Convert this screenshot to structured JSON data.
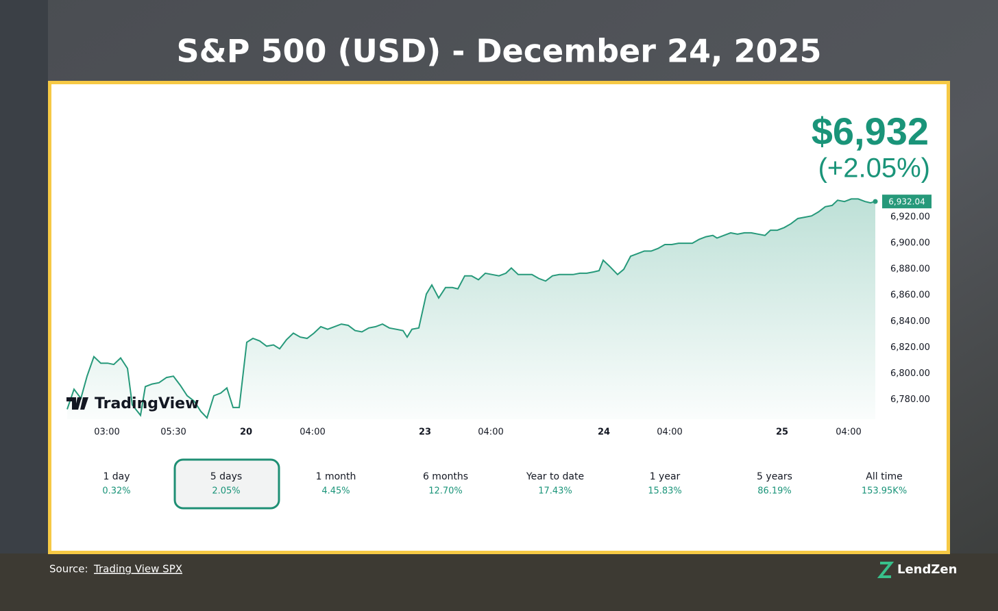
{
  "title": "S&P 500 (USD) - December 24, 2025",
  "source_prefix": "Source:",
  "source_link": "Trading View SPX",
  "brand": "LendZen",
  "chart_data": {
    "type": "line",
    "watermark": "TradingView",
    "price": "$6,932",
    "change": "(+2.05%)",
    "color": "#26997a",
    "x": [
      0,
      10,
      20,
      29,
      39,
      49,
      59,
      68,
      78,
      88,
      95,
      107,
      114,
      124,
      134,
      145,
      155,
      165,
      175,
      185,
      195,
      204,
      214,
      224,
      233,
      242,
      251,
      262,
      271,
      281,
      291,
      301,
      310,
      320,
      330,
      340,
      350,
      360,
      370,
      380,
      390,
      400,
      410,
      420,
      430,
      440,
      450,
      460,
      470,
      480,
      490,
      496,
      503,
      513,
      524,
      532,
      542,
      552,
      562,
      570,
      580,
      590,
      600,
      610,
      620,
      630,
      640,
      648,
      658,
      668,
      678,
      688,
      698,
      708,
      718,
      728,
      738,
      748,
      758,
      768,
      776,
      782,
      792,
      803,
      812,
      822,
      832,
      842,
      852,
      862,
      872,
      882,
      892,
      902,
      912,
      922,
      932,
      942,
      948,
      958,
      968,
      978,
      988,
      998,
      1008,
      1018,
      1026,
      1036,
      1046,
      1056,
      1066,
      1076,
      1086,
      1096,
      1106,
      1116,
      1124,
      1134,
      1144,
      1154,
      1164,
      1172,
      1179
    ],
    "values": [
      6772.6,
      6788,
      6781,
      6798,
      6813,
      6808,
      6808,
      6807,
      6812,
      6804,
      6776,
      6768,
      6790,
      6792,
      6793,
      6797,
      6798,
      6791,
      6783,
      6779,
      6771,
      6766,
      6783,
      6785,
      6789,
      6774,
      6774,
      6824,
      6827,
      6825,
      6821,
      6822,
      6819,
      6826,
      6831,
      6828,
      6827,
      6831,
      6836,
      6834,
      6836,
      6838,
      6837,
      6833,
      6832,
      6835,
      6836,
      6838,
      6835,
      6834,
      6833,
      6828,
      6834,
      6835,
      6861,
      6868,
      6858,
      6866,
      6866,
      6865,
      6875,
      6875,
      6872,
      6877,
      6876,
      6875,
      6877,
      6881,
      6876,
      6876,
      6876,
      6873,
      6871,
      6875,
      6876,
      6876,
      6876,
      6877,
      6877,
      6878,
      6879,
      6887,
      6882,
      6876,
      6880,
      6890,
      6892,
      6894,
      6894,
      6896,
      6899,
      6899,
      6900,
      6900,
      6900,
      6903,
      6905,
      6906,
      6904,
      6906,
      6908,
      6907,
      6908,
      6908,
      6907,
      6906,
      6910,
      6910,
      6912,
      6915,
      6919,
      6920,
      6921,
      6924,
      6928,
      6929,
      6933,
      6932,
      6934,
      6934,
      6932,
      6931,
      6932.04
    ],
    "last_price": {
      "value": 6932.04,
      "label": "6,932.04"
    },
    "xlim": [
      0,
      1179
    ],
    "xticks": [
      {
        "value": 58,
        "label": "03:00"
      },
      {
        "value": 155,
        "label": "05:30"
      },
      {
        "value": 261,
        "label": "20"
      },
      {
        "value": 358,
        "label": "04:00"
      },
      {
        "value": 522,
        "label": "23"
      },
      {
        "value": 618,
        "label": "04:00"
      },
      {
        "value": 783,
        "label": "24"
      },
      {
        "value": 879,
        "label": "04:00"
      },
      {
        "value": 1043,
        "label": "25"
      },
      {
        "value": 1140,
        "label": "04:00"
      }
    ],
    "ylim": [
      6765,
      6940
    ],
    "yticks": [
      {
        "value": 6780,
        "label": "6,780.00"
      },
      {
        "value": 6800,
        "label": "6,800.00"
      },
      {
        "value": 6820,
        "label": "6,820.00"
      },
      {
        "value": 6840,
        "label": "6,840.00"
      },
      {
        "value": 6860,
        "label": "6,860.00"
      },
      {
        "value": 6880,
        "label": "6,880.00"
      },
      {
        "value": 6900,
        "label": "6,900.00"
      },
      {
        "value": 6920,
        "label": "6,920.00"
      }
    ],
    "ranges": [
      {
        "label": "1 day",
        "change": "0.32%"
      },
      {
        "label": "5 days",
        "change": "2.05%"
      },
      {
        "label": "1 month",
        "change": "4.45%"
      },
      {
        "label": "6 months",
        "change": "12.70%"
      },
      {
        "label": "Year to date",
        "change": "17.43%"
      },
      {
        "label": "1 year",
        "change": "15.83%"
      },
      {
        "label": "5 years",
        "change": "86.19%"
      },
      {
        "label": "All time",
        "change": "153.95K%"
      }
    ],
    "selected_range": 1
  }
}
